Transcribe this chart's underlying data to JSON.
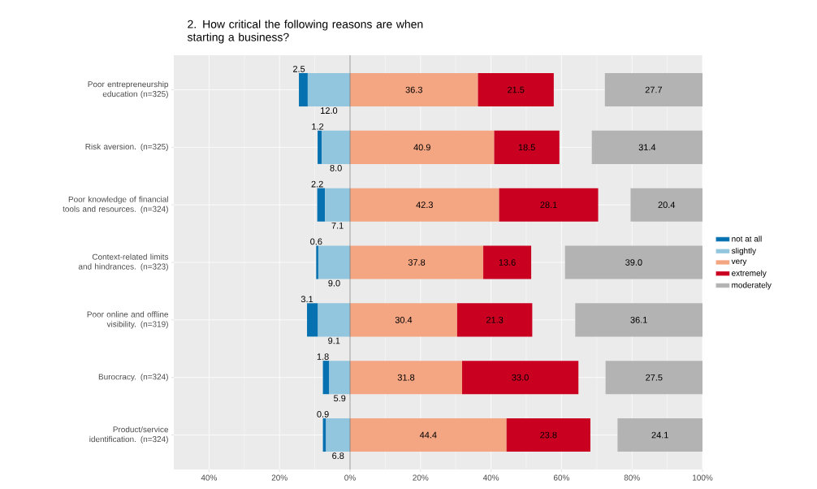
{
  "chart_data": {
    "type": "bar",
    "orientation": "horizontal",
    "title": "2. How critical the following reasons are when starting a business?",
    "categories": [
      "Poor entrepreneurship education (n=325)",
      "Risk aversion. (n=325)",
      "Poor knowledge of financial tools and resources. (n=324)",
      "Context-related limits and hindrances. (n=323)",
      "Poor online and offline visibility. (n=319)",
      "Burocracy. (n=324)",
      "Product/service identification. (n=324)"
    ],
    "series": [
      {
        "name": "not at all",
        "color": "#0571b0",
        "values": [
          -2.5,
          -1.2,
          -2.2,
          -0.6,
          -3.1,
          -1.8,
          -0.9
        ],
        "base": [
          -12.0,
          -8.0,
          -7.1,
          -9.0,
          -9.1,
          -5.9,
          -6.8
        ],
        "value_labels": [
          "2.5",
          "1.2",
          "2.2",
          "0.6",
          "3.1",
          "1.8",
          "0.9"
        ]
      },
      {
        "name": "slightly",
        "color": "#92c5de",
        "values": [
          -12.0,
          -8.0,
          -7.1,
          -9.0,
          -9.1,
          -5.9,
          -6.8
        ],
        "base": [
          0,
          0,
          0,
          0,
          0,
          0,
          0
        ],
        "value_labels": [
          "12.0",
          "8.0",
          "7.1",
          "9.0",
          "9.1",
          "5.9",
          "6.8"
        ]
      },
      {
        "name": "very",
        "color": "#f4a582",
        "values": [
          36.3,
          40.9,
          42.3,
          37.8,
          30.4,
          31.8,
          44.4
        ],
        "base": [
          0,
          0,
          0,
          0,
          0,
          0,
          0
        ],
        "value_labels": [
          "36.3",
          "40.9",
          "42.3",
          "37.8",
          "30.4",
          "31.8",
          "44.4"
        ]
      },
      {
        "name": "extremely",
        "color": "#ca0020",
        "values": [
          21.5,
          18.5,
          28.1,
          13.6,
          21.3,
          33.0,
          23.8
        ],
        "base": [
          36.3,
          40.9,
          42.3,
          37.8,
          30.4,
          31.8,
          44.4
        ],
        "value_labels": [
          "21.5",
          "18.5",
          "28.1",
          "13.6",
          "21.3",
          "33.0",
          "23.8"
        ]
      },
      {
        "name": "moderately",
        "color": "#b3b3b3",
        "values": [
          27.7,
          31.4,
          20.4,
          39.0,
          36.1,
          27.5,
          24.1
        ],
        "base": [
          72.3,
          68.6,
          79.6,
          61.0,
          63.9,
          72.5,
          75.9
        ],
        "value_labels": [
          "27.7",
          "31.4",
          "20.4",
          "39.0",
          "36.1",
          "27.5",
          "24.1"
        ]
      }
    ],
    "xlim": [
      -50,
      100
    ],
    "xticks": [
      {
        "value": -40,
        "label": "40%"
      },
      {
        "value": -20,
        "label": "20%"
      },
      {
        "value": 0,
        "label": "0%"
      },
      {
        "value": 20,
        "label": "20%"
      },
      {
        "value": 40,
        "label": "40%"
      },
      {
        "value": 60,
        "label": "60%"
      },
      {
        "value": 80,
        "label": "80%"
      },
      {
        "value": 100,
        "label": "100%"
      }
    ],
    "ref_lines": [
      {
        "axis": "x",
        "value": 0,
        "color": "#7f7f7f"
      }
    ],
    "grid": true,
    "legend": "right"
  }
}
